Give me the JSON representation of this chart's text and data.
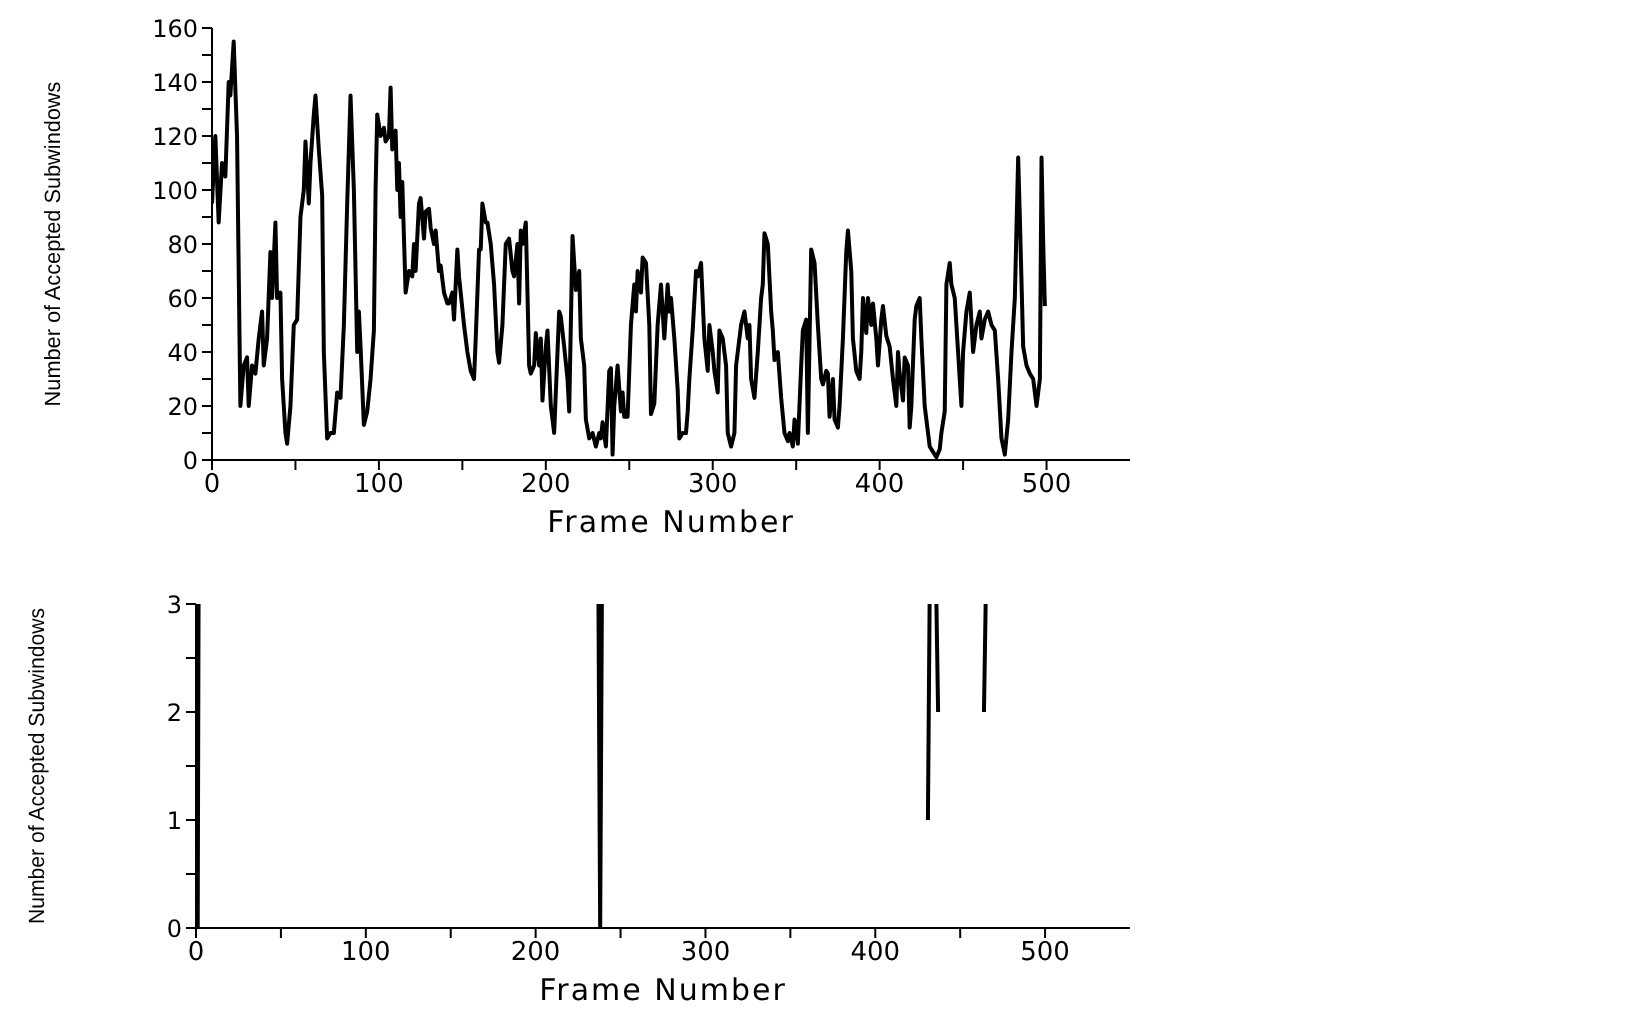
{
  "chart_data": [
    {
      "type": "line",
      "xlabel": "Frame Number",
      "ylabel": "Number of Accepted Subwindows",
      "xlim": [
        0,
        550
      ],
      "ylim": [
        0,
        160
      ],
      "xticks": [
        0,
        {
          "value": 50,
          "label": null
        },
        100,
        {
          "value": 150,
          "label": null
        },
        200,
        {
          "value": 250,
          "label": null
        },
        300,
        {
          "value": 350,
          "label": null
        },
        400,
        {
          "value": 450,
          "label": null
        },
        500
      ],
      "yticks": [
        0,
        {
          "value": 10,
          "label": null
        },
        20,
        {
          "value": 30,
          "label": null
        },
        40,
        {
          "value": 50,
          "label": null
        },
        60,
        {
          "value": 70,
          "label": null
        },
        80,
        {
          "value": 90,
          "label": null
        },
        100,
        {
          "value": 110,
          "label": null
        },
        120,
        {
          "value": 130,
          "label": null
        },
        140,
        {
          "value": 150,
          "label": null
        },
        160
      ],
      "grid": false,
      "legend": false,
      "marker": "none",
      "line_style": "solid",
      "series": [
        {
          "color": "#000000",
          "x": [
            0,
            2,
            4,
            6,
            8,
            10,
            11,
            13,
            15,
            17,
            19,
            21,
            22,
            24,
            26,
            28,
            30,
            31,
            33,
            35,
            36,
            38,
            39,
            41,
            42,
            44,
            45,
            47,
            49,
            51,
            53,
            55,
            56,
            58,
            59,
            61,
            62,
            64,
            66,
            67,
            69,
            71,
            73,
            75,
            77,
            79,
            81,
            83,
            85,
            87,
            88,
            89,
            91,
            93,
            95,
            97,
            98,
            99,
            101,
            103,
            104,
            106,
            107,
            108,
            110,
            111,
            112,
            113,
            114,
            116,
            118,
            120,
            121,
            122,
            124,
            125,
            127,
            128,
            130,
            131,
            133,
            134,
            136,
            137,
            139,
            141,
            142,
            144,
            145,
            147,
            148,
            149,
            151,
            153,
            155,
            157,
            158,
            160,
            161,
            162,
            164,
            165,
            167,
            169,
            171,
            172,
            174,
            176,
            178,
            180,
            181,
            183,
            184,
            185,
            186,
            188,
            189,
            190,
            191,
            193,
            194,
            196,
            197,
            198,
            200,
            201,
            203,
            205,
            206,
            208,
            209,
            211,
            213,
            214,
            216,
            218,
            220,
            221,
            223,
            224,
            226,
            228,
            230,
            232,
            233,
            234,
            236,
            238,
            239,
            240,
            241,
            243,
            245,
            246,
            247,
            249,
            251,
            253,
            254,
            255,
            257,
            258,
            260,
            262,
            263,
            265,
            267,
            269,
            271,
            273,
            274,
            275,
            277,
            279,
            280,
            282,
            284,
            285,
            286,
            288,
            290,
            291,
            293,
            295,
            297,
            298,
            300,
            301,
            303,
            304,
            306,
            308,
            309,
            311,
            313,
            314,
            316,
            317,
            319,
            321,
            322,
            323,
            325,
            327,
            329,
            330,
            331,
            333,
            335,
            336,
            337,
            339,
            341,
            343,
            345,
            346,
            348,
            349,
            350,
            351,
            353,
            354,
            356,
            357,
            359,
            361,
            363,
            365,
            366,
            368,
            369,
            370,
            372,
            373,
            375,
            376,
            378,
            380,
            381,
            383,
            384,
            386,
            388,
            389,
            390,
            392,
            393,
            395,
            396,
            398,
            399,
            401,
            402,
            404,
            406,
            408,
            410,
            411,
            412,
            414,
            415,
            417,
            418,
            419,
            421,
            422,
            424,
            425,
            427,
            429,
            430,
            432,
            434,
            436,
            437,
            439,
            440,
            442,
            443,
            445,
            447,
            449,
            450,
            452,
            454,
            456,
            458,
            460,
            461,
            463,
            465,
            467,
            469,
            471,
            473,
            475,
            477,
            479,
            481,
            483,
            484,
            486,
            488,
            490,
            492,
            494,
            496,
            497,
            498,
            499
          ],
          "values": [
            95,
            120,
            88,
            110,
            105,
            140,
            135,
            155,
            120,
            20,
            35,
            38,
            20,
            35,
            32,
            45,
            55,
            35,
            45,
            77,
            60,
            88,
            60,
            62,
            30,
            10,
            6,
            20,
            50,
            52,
            90,
            100,
            118,
            95,
            110,
            128,
            135,
            115,
            98,
            40,
            8,
            10,
            10,
            25,
            23,
            50,
            95,
            135,
            100,
            40,
            55,
            42,
            13,
            18,
            30,
            48,
            100,
            128,
            120,
            123,
            118,
            120,
            138,
            115,
            122,
            100,
            110,
            90,
            103,
            62,
            70,
            68,
            80,
            70,
            95,
            97,
            82,
            92,
            93,
            86,
            80,
            85,
            70,
            72,
            62,
            58,
            58,
            62,
            52,
            78,
            68,
            62,
            50,
            40,
            33,
            30,
            45,
            78,
            78,
            95,
            88,
            88,
            80,
            65,
            40,
            36,
            50,
            80,
            82,
            70,
            68,
            80,
            58,
            85,
            80,
            88,
            62,
            35,
            32,
            35,
            47,
            35,
            45,
            22,
            42,
            48,
            20,
            10,
            25,
            55,
            53,
            42,
            30,
            18,
            83,
            63,
            70,
            45,
            35,
            15,
            8,
            10,
            5,
            10,
            8,
            14,
            5,
            33,
            34,
            2,
            20,
            35,
            18,
            25,
            16,
            16,
            50,
            65,
            55,
            70,
            62,
            75,
            73,
            50,
            17,
            21,
            50,
            65,
            45,
            65,
            55,
            60,
            45,
            26,
            8,
            10,
            10,
            18,
            30,
            48,
            70,
            68,
            73,
            45,
            33,
            50,
            40,
            33,
            25,
            48,
            45,
            35,
            10,
            5,
            10,
            35,
            45,
            50,
            55,
            45,
            50,
            30,
            23,
            40,
            60,
            65,
            84,
            80,
            55,
            48,
            37,
            40,
            23,
            10,
            7,
            10,
            5,
            15,
            12,
            6,
            35,
            48,
            52,
            10,
            78,
            73,
            50,
            30,
            28,
            33,
            32,
            16,
            30,
            15,
            12,
            20,
            45,
            77,
            85,
            70,
            45,
            33,
            30,
            40,
            60,
            47,
            60,
            50,
            58,
            45,
            35,
            52,
            57,
            46,
            42,
            30,
            20,
            40,
            32,
            22,
            38,
            35,
            12,
            20,
            52,
            57,
            60,
            45,
            20,
            10,
            5,
            3,
            1,
            4,
            10,
            18,
            65,
            73,
            65,
            60,
            40,
            20,
            40,
            55,
            62,
            40,
            50,
            55,
            45,
            52,
            55,
            50,
            48,
            30,
            8,
            2,
            15,
            40,
            60,
            112,
            90,
            42,
            35,
            32,
            30,
            20,
            30,
            112,
            80,
            57
          ]
        }
      ]
    },
    {
      "type": "line",
      "xlabel": "Frame Number",
      "ylabel": "Number of Accepted Subwindows",
      "xlim": [
        0,
        550
      ],
      "ylim": [
        0,
        3
      ],
      "xticks": [
        0,
        {
          "value": 50,
          "label": null
        },
        100,
        {
          "value": 150,
          "label": null
        },
        200,
        {
          "value": 250,
          "label": null
        },
        300,
        {
          "value": 350,
          "label": null
        },
        400,
        {
          "value": 450,
          "label": null
        },
        500
      ],
      "yticks": [
        0,
        {
          "value": 0.5,
          "label": null
        },
        1,
        {
          "value": 1.5,
          "label": null
        },
        2,
        {
          "value": 2.5,
          "label": null
        },
        3
      ],
      "grid": false,
      "legend": false,
      "marker": "none",
      "line_style": "solid",
      "series": [
        {
          "color": "#000000",
          "x": [
            1,
            1.5,
            2,
            237,
            238,
            239,
            240,
            431,
            432,
            434,
            436,
            437,
            438,
            464,
            465
          ],
          "values": [
            0,
            3,
            null,
            3,
            0,
            3,
            null,
            1,
            3,
            null,
            3,
            2,
            null,
            2,
            3
          ]
        }
      ]
    }
  ]
}
